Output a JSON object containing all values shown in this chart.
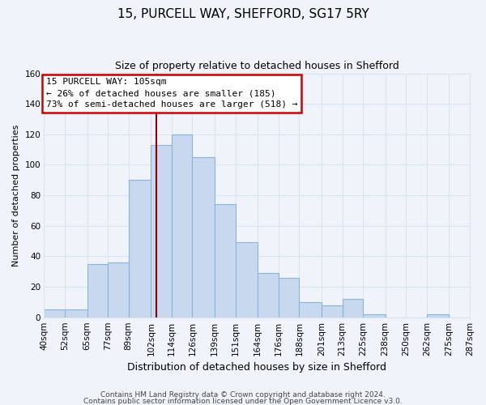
{
  "title_line1": "15, PURCELL WAY, SHEFFORD, SG17 5RY",
  "title_line2": "Size of property relative to detached houses in Shefford",
  "xlabel": "Distribution of detached houses by size in Shefford",
  "ylabel": "Number of detached properties",
  "bar_color": "#c8d9ef",
  "bar_edge_color": "#8ab4d8",
  "grid_color": "#d8e4f0",
  "annotation_box_edge": "#cc0000",
  "annotation_line_color": "#8b0000",
  "annotation_text_line1": "15 PURCELL WAY: 105sqm",
  "annotation_text_line2": "← 26% of detached houses are smaller (185)",
  "annotation_text_line3": "73% of semi-detached houses are larger (518) →",
  "property_value": 105,
  "bins": [
    40,
    52,
    65,
    77,
    89,
    102,
    114,
    126,
    139,
    151,
    164,
    176,
    188,
    201,
    213,
    225,
    238,
    250,
    262,
    275,
    287
  ],
  "counts": [
    5,
    5,
    35,
    36,
    90,
    113,
    120,
    105,
    74,
    49,
    29,
    26,
    10,
    8,
    12,
    2,
    0,
    0,
    2,
    0
  ],
  "ylim": [
    0,
    160
  ],
  "yticks": [
    0,
    20,
    40,
    60,
    80,
    100,
    120,
    140,
    160
  ],
  "footer_line1": "Contains HM Land Registry data © Crown copyright and database right 2024.",
  "footer_line2": "Contains public sector information licensed under the Open Government Licence v3.0.",
  "background_color": "#f0f4fa",
  "title_fontsize": 11,
  "subtitle_fontsize": 9,
  "xlabel_fontsize": 9,
  "ylabel_fontsize": 8,
  "tick_fontsize": 7.5,
  "annotation_fontsize": 8,
  "footer_fontsize": 6.5
}
